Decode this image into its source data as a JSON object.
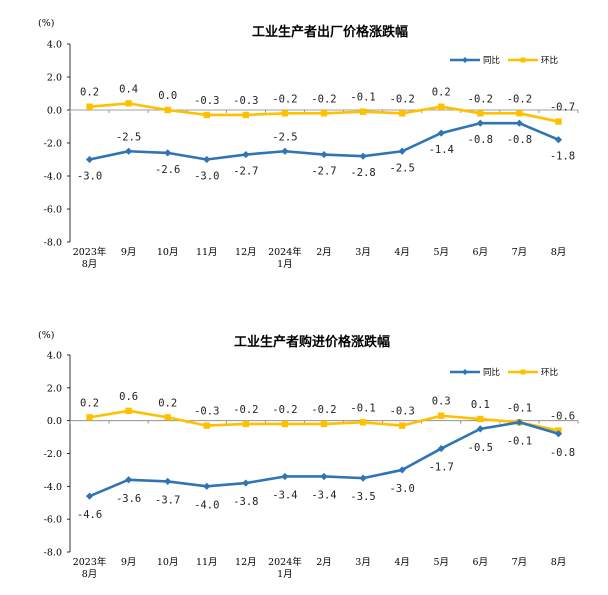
{
  "colors": {
    "yoy": "#2F75B5",
    "mom": "#FFC000",
    "axis": "#000000"
  },
  "chart_data": [
    {
      "type": "line",
      "title": "工业生产者出厂价格涨跌幅",
      "unit_label": "(%)",
      "ylim": [
        -8.0,
        4.0
      ],
      "yticks": [
        "4.0",
        "2.0",
        "0.0",
        "-2.0",
        "-4.0",
        "-6.0",
        "-8.0"
      ],
      "ytick_values": [
        4,
        2,
        0,
        -2,
        -4,
        -6,
        -8
      ],
      "categories": [
        [
          "2023年",
          "8月"
        ],
        [
          "9月"
        ],
        [
          "10月"
        ],
        [
          "11月"
        ],
        [
          "12月"
        ],
        [
          "2024年",
          "1月"
        ],
        [
          "2月"
        ],
        [
          "3月"
        ],
        [
          "4月"
        ],
        [
          "5月"
        ],
        [
          "6月"
        ],
        [
          "7月"
        ],
        [
          "8月"
        ]
      ],
      "legend": [
        "同比",
        "环比"
      ],
      "series": [
        {
          "name": "同比",
          "color_key": "yoy",
          "values": [
            -3.0,
            -2.5,
            -2.6,
            -3.0,
            -2.7,
            -2.5,
            -2.7,
            -2.8,
            -2.5,
            -1.4,
            -0.8,
            -0.8,
            -1.8
          ],
          "labels": [
            "-3.0",
            "-2.5",
            "-2.6",
            "-3.0",
            "-2.7",
            "-2.5",
            "-2.7",
            "-2.8",
            "-2.5",
            "-1.4",
            "-0.8",
            "-0.8",
            "-1.8"
          ]
        },
        {
          "name": "环比",
          "color_key": "mom",
          "values": [
            0.2,
            0.4,
            0.0,
            -0.3,
            -0.3,
            -0.2,
            -0.2,
            -0.1,
            -0.2,
            0.2,
            -0.2,
            -0.2,
            -0.7
          ],
          "labels": [
            "0.2",
            "0.4",
            "0.0",
            "-0.3",
            "-0.3",
            "-0.2",
            "-0.2",
            "-0.1",
            "-0.2",
            "0.2",
            "-0.2",
            "-0.2",
            "-0.7"
          ]
        }
      ]
    },
    {
      "type": "line",
      "title": "工业生产者购进价格涨跌幅",
      "unit_label": "(%)",
      "ylim": [
        -8.0,
        4.0
      ],
      "yticks": [
        "4.0",
        "2.0",
        "0.0",
        "-2.0",
        "-4.0",
        "-6.0",
        "-8.0"
      ],
      "ytick_values": [
        4,
        2,
        0,
        -2,
        -4,
        -6,
        -8
      ],
      "categories": [
        [
          "2023年",
          "8月"
        ],
        [
          "9月"
        ],
        [
          "10月"
        ],
        [
          "11月"
        ],
        [
          "12月"
        ],
        [
          "2024年",
          "1月"
        ],
        [
          "2月"
        ],
        [
          "3月"
        ],
        [
          "4月"
        ],
        [
          "5月"
        ],
        [
          "6月"
        ],
        [
          "7月"
        ],
        [
          "8月"
        ]
      ],
      "legend": [
        "同比",
        "环比"
      ],
      "series": [
        {
          "name": "同比",
          "color_key": "yoy",
          "values": [
            -4.6,
            -3.6,
            -3.7,
            -4.0,
            -3.8,
            -3.4,
            -3.4,
            -3.5,
            -3.0,
            -1.7,
            -0.5,
            -0.1,
            -0.8
          ],
          "labels": [
            "-4.6",
            "-3.6",
            "-3.7",
            "-4.0",
            "-3.8",
            "-3.4",
            "-3.4",
            "-3.5",
            "-3.0",
            "-1.7",
            "-0.5",
            "-0.1",
            "-0.8"
          ]
        },
        {
          "name": "环比",
          "color_key": "mom",
          "values": [
            0.2,
            0.6,
            0.2,
            -0.3,
            -0.2,
            -0.2,
            -0.2,
            -0.1,
            -0.3,
            0.3,
            0.1,
            -0.1,
            -0.6
          ],
          "labels": [
            "0.2",
            "0.6",
            "0.2",
            "-0.3",
            "-0.2",
            "-0.2",
            "-0.2",
            "-0.1",
            "-0.3",
            "0.3",
            "0.1",
            "-0.1",
            "-0.6"
          ]
        }
      ]
    }
  ]
}
